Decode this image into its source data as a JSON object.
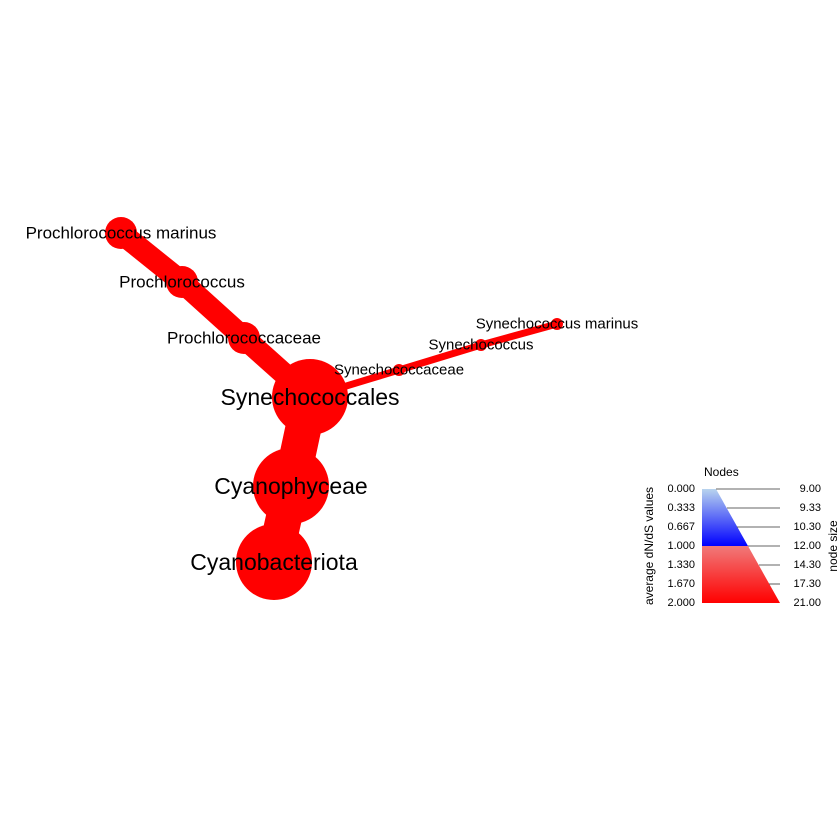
{
  "colors": {
    "edge": "#ff0000",
    "node": "#ff0000"
  },
  "nodes": [
    {
      "id": "cyanobacteriota",
      "label": "Cyanobacteriota",
      "size": 21.0,
      "dnds": 2.0
    },
    {
      "id": "cyanophyceae",
      "label": "Cyanophyceae",
      "size": 20.0,
      "dnds": 2.0
    },
    {
      "id": "synechococcales",
      "label": "Synechococcales",
      "size": 20.0,
      "dnds": 2.0
    },
    {
      "id": "prochlorococcaceae",
      "label": "Prochlorococcaceae",
      "size": 12.0,
      "dnds": 2.0
    },
    {
      "id": "prochlorococcus",
      "label": "Prochlorococcus",
      "size": 12.0,
      "dnds": 2.0
    },
    {
      "id": "prochlorococcus-marinus",
      "label": "Prochlorococcus marinus",
      "size": 12.0,
      "dnds": 2.0
    },
    {
      "id": "synechococcaceae",
      "label": "Synechococcaceae",
      "size": 9.0,
      "dnds": 2.0
    },
    {
      "id": "synechococcus",
      "label": "Synechococcus",
      "size": 9.0,
      "dnds": 2.0
    },
    {
      "id": "synechococcus-marinus",
      "label": "Synechococcus marinus",
      "size": 9.0,
      "dnds": 2.0
    }
  ],
  "edges": [
    {
      "from": "cyanobacteriota",
      "to": "cyanophyceae"
    },
    {
      "from": "cyanophyceae",
      "to": "synechococcales"
    },
    {
      "from": "synechococcales",
      "to": "prochlorococcaceae"
    },
    {
      "from": "prochlorococcaceae",
      "to": "prochlorococcus"
    },
    {
      "from": "prochlorococcus",
      "to": "prochlorococcus-marinus"
    },
    {
      "from": "synechococcales",
      "to": "synechococcaceae"
    },
    {
      "from": "synechococcaceae",
      "to": "synechococcus"
    },
    {
      "from": "synechococcus",
      "to": "synechococcus-marinus"
    }
  ],
  "legend": {
    "title": "Nodes",
    "left_axis_label": "average dN/dS values",
    "right_axis_label": "node size",
    "dnds_ticks": [
      "0.000",
      "0.333",
      "0.667",
      "1.000",
      "1.330",
      "1.670",
      "2.000"
    ],
    "size_ticks": [
      "9.00",
      "9.33",
      "10.30",
      "12.00",
      "14.30",
      "17.30",
      "21.00"
    ]
  }
}
